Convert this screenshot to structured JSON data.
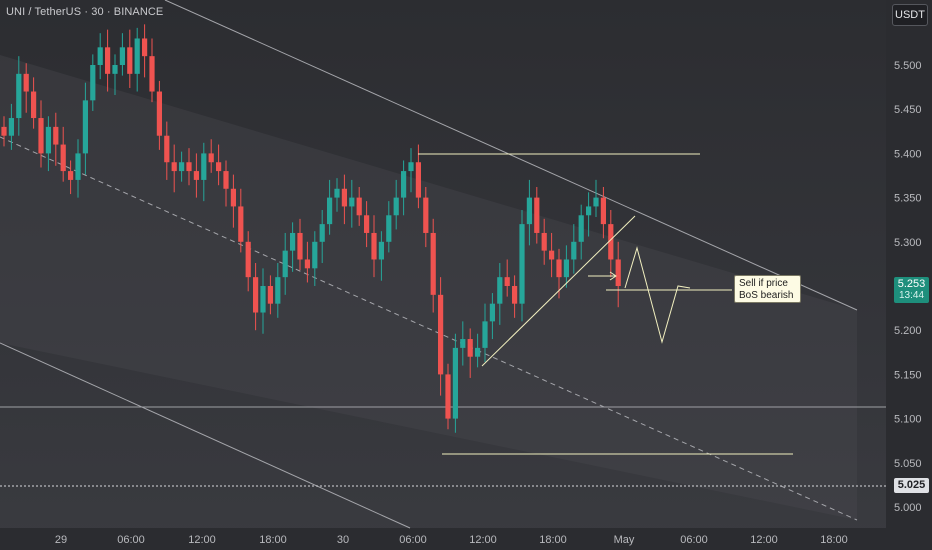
{
  "header": {
    "symbol_title": "UNI / TetherUS · 30 · BINANCE",
    "currency": "USDT"
  },
  "price_axis": {
    "ticks": [
      "5.500",
      "5.450",
      "5.400",
      "5.350",
      "5.300",
      "5.200",
      "5.150",
      "5.100",
      "5.050",
      "5.000"
    ],
    "last_price": "5.253",
    "countdown": "13:44",
    "horizontal_level": "5.025"
  },
  "time_axis": {
    "ticks": [
      "29",
      "06:00",
      "12:00",
      "18:00",
      "30",
      "06:00",
      "12:00",
      "18:00",
      "May",
      "06:00",
      "12:00",
      "18:00"
    ]
  },
  "annotation": {
    "note_line1": "Sell if price",
    "note_line2": "BoS bearish"
  },
  "colors": {
    "up": "#26a69a",
    "down": "#ef5350",
    "drawing": "#f1efbf",
    "channel": "#9a9ba1",
    "last_price_bg": "#1e8f7c"
  },
  "chart_data": {
    "type": "candlestick",
    "symbol": "UNI/USDT",
    "interval": "30",
    "exchange": "BINANCE",
    "ylim": [
      4.975,
      5.565
    ],
    "closes": [
      5.42,
      5.44,
      5.49,
      5.47,
      5.44,
      5.4,
      5.43,
      5.41,
      5.38,
      5.37,
      5.4,
      5.46,
      5.5,
      5.52,
      5.49,
      5.5,
      5.52,
      5.49,
      5.53,
      5.51,
      5.47,
      5.42,
      5.39,
      5.38,
      5.39,
      5.38,
      5.37,
      5.4,
      5.39,
      5.38,
      5.36,
      5.34,
      5.3,
      5.26,
      5.22,
      5.25,
      5.23,
      5.26,
      5.29,
      5.31,
      5.28,
      5.27,
      5.3,
      5.32,
      5.35,
      5.36,
      5.34,
      5.35,
      5.33,
      5.31,
      5.28,
      5.3,
      5.33,
      5.35,
      5.38,
      5.39,
      5.35,
      5.31,
      5.24,
      5.15,
      5.1,
      5.18,
      5.19,
      5.17,
      5.18,
      5.21,
      5.23,
      5.26,
      5.25,
      5.23,
      5.32,
      5.35,
      5.31,
      5.29,
      5.28,
      5.26,
      5.28,
      5.3,
      5.33,
      5.34,
      5.35,
      5.32,
      5.28,
      5.25
    ],
    "last_price": 5.253,
    "horizontal_level": 5.025
  }
}
